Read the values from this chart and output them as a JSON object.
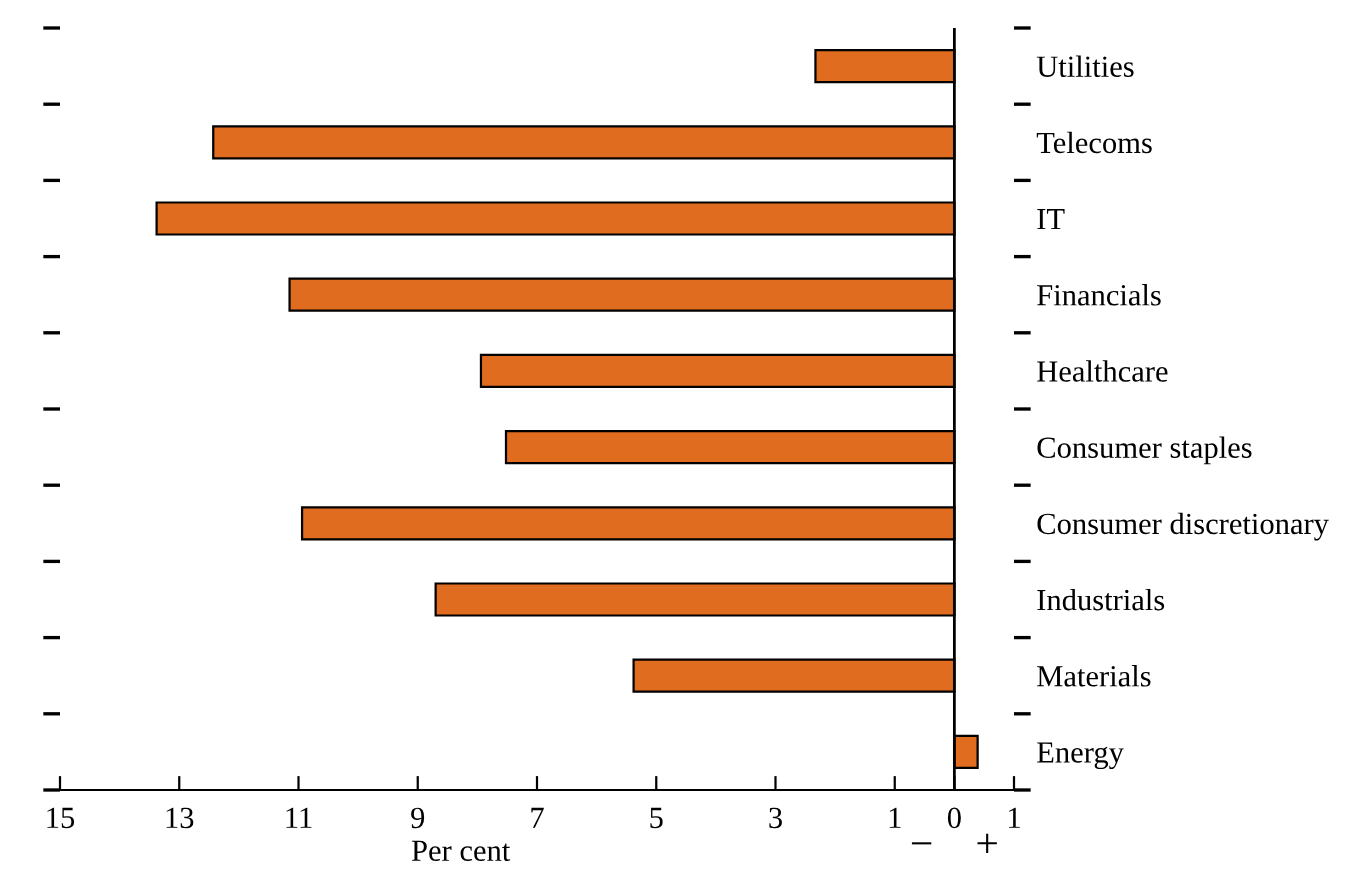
{
  "chart_data": {
    "type": "bar",
    "orientation": "horizontal",
    "categories": [
      "Utilities",
      "Telecoms",
      "IT",
      "Financials",
      "Healthcare",
      "Consumer staples",
      "Consumer discretionary",
      "Industrials",
      "Materials",
      "Energy"
    ],
    "values": [
      -2.33,
      -12.43,
      -13.38,
      -11.15,
      -7.94,
      -7.52,
      -10.94,
      -8.7,
      -5.38,
      0.39
    ],
    "color": "#e06c1f",
    "xlabel": "Per cent",
    "xlim": [
      -15,
      1
    ],
    "xticks": [
      {
        "value": -15,
        "label": "15"
      },
      {
        "value": -13,
        "label": "13"
      },
      {
        "value": -11,
        "label": "11"
      },
      {
        "value": -9,
        "label": "9"
      },
      {
        "value": -7,
        "label": "7"
      },
      {
        "value": -5,
        "label": "5"
      },
      {
        "value": -3,
        "label": "3"
      },
      {
        "value": -1,
        "label": "1"
      },
      0,
      1
    ],
    "ref_lines": [
      {
        "axis": "x",
        "value": 0,
        "color": "#000000"
      }
    ],
    "annotations": [
      "−",
      "+"
    ],
    "grid": false,
    "legend": false
  }
}
